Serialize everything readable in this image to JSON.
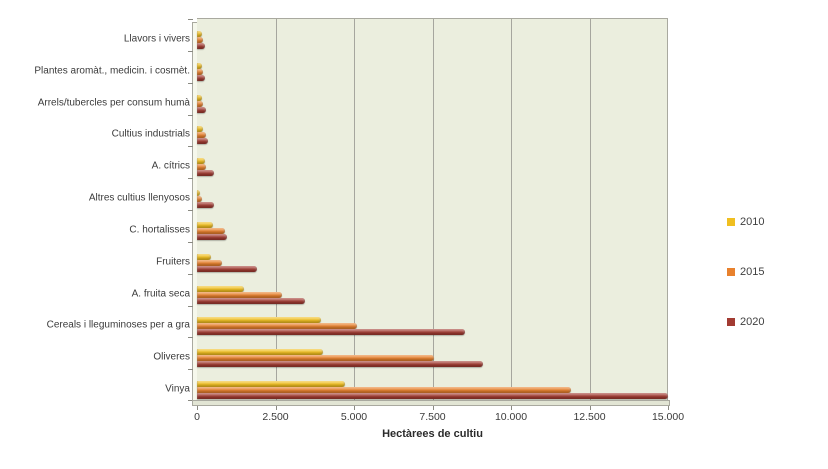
{
  "chart_data": {
    "type": "bar",
    "orientation": "horizontal",
    "title": "",
    "xlabel": "Hectàrees de cultiu",
    "ylabel": "",
    "xlim": [
      0,
      15000
    ],
    "xticks": [
      0,
      2500,
      5000,
      7500,
      10000,
      12500,
      15000
    ],
    "xtick_labels": [
      "0",
      "2.500",
      "5.000",
      "7.500",
      "10.000",
      "12.500",
      "15.000"
    ],
    "grid": true,
    "legend_position": "right",
    "plot_background": "#EBEEDE",
    "gridline_color": "#A6A69E",
    "categories": [
      "Llavors i vivers",
      "Plantes aromàt., medicin. i cosmèt.",
      "Arrels/tubercles per consum humà",
      "Cultius industrials",
      "A. cítrics",
      "Altres cultius llenyosos",
      "C. hortalisses",
      "Fruiters",
      "A. fruita seca",
      "Cereals i lleguminoses per a gra",
      "Oliveres",
      "Vinya"
    ],
    "series": [
      {
        "name": "2010",
        "color": "#F0BF20",
        "values": [
          150,
          150,
          150,
          200,
          250,
          100,
          500,
          450,
          1500,
          3950,
          4000,
          4700
        ]
      },
      {
        "name": "2015",
        "color": "#E8812D",
        "values": [
          200,
          200,
          200,
          300,
          300,
          150,
          900,
          800,
          2700,
          5100,
          7550,
          11900
        ]
      },
      {
        "name": "2020",
        "color": "#A23B32",
        "values": [
          250,
          250,
          300,
          350,
          550,
          550,
          950,
          1900,
          3450,
          8550,
          9100,
          15000
        ]
      }
    ]
  }
}
